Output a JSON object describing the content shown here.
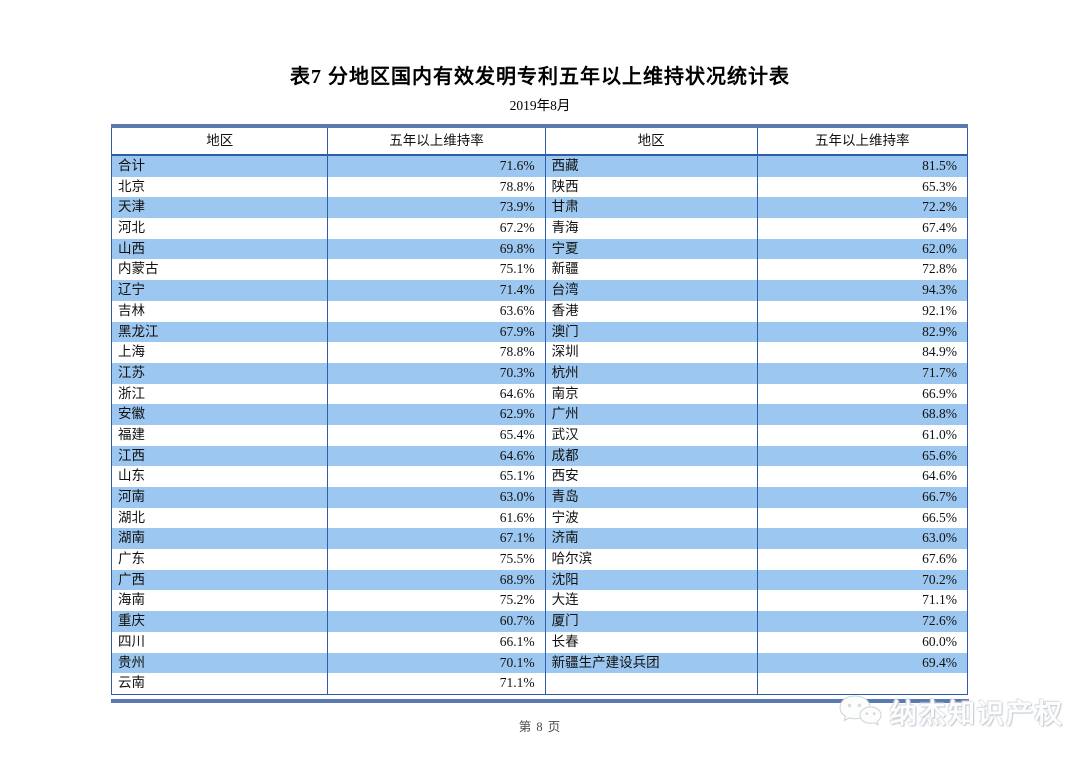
{
  "page": {
    "title": "表7  分地区国内有效发明专利五年以上维持状况统计表",
    "subtitle": "2019年8月",
    "footer_page": "第 8 页",
    "watermark_text": "纳杰知识产权",
    "watermark_icon": "wechat-icon"
  },
  "table": {
    "headers": [
      "地区",
      "五年以上维持率",
      "地区",
      "五年以上维持率"
    ],
    "rows": [
      [
        "合计",
        "71.6%",
        "西藏",
        "81.5%"
      ],
      [
        "北京",
        "78.8%",
        "陕西",
        "65.3%"
      ],
      [
        "天津",
        "73.9%",
        "甘肃",
        "72.2%"
      ],
      [
        "河北",
        "67.2%",
        "青海",
        "67.4%"
      ],
      [
        "山西",
        "69.8%",
        "宁夏",
        "62.0%"
      ],
      [
        "内蒙古",
        "75.1%",
        "新疆",
        "72.8%"
      ],
      [
        "辽宁",
        "71.4%",
        "台湾",
        "94.3%"
      ],
      [
        "吉林",
        "63.6%",
        "香港",
        "92.1%"
      ],
      [
        "黑龙江",
        "67.9%",
        "澳门",
        "82.9%"
      ],
      [
        "上海",
        "78.8%",
        "深圳",
        "84.9%"
      ],
      [
        "江苏",
        "70.3%",
        "杭州",
        "71.7%"
      ],
      [
        "浙江",
        "64.6%",
        "南京",
        "66.9%"
      ],
      [
        "安徽",
        "62.9%",
        "广州",
        "68.8%"
      ],
      [
        "福建",
        "65.4%",
        "武汉",
        "61.0%"
      ],
      [
        "江西",
        "64.6%",
        "成都",
        "65.6%"
      ],
      [
        "山东",
        "65.1%",
        "西安",
        "64.6%"
      ],
      [
        "河南",
        "63.0%",
        "青岛",
        "66.7%"
      ],
      [
        "湖北",
        "61.6%",
        "宁波",
        "66.5%"
      ],
      [
        "湖南",
        "67.1%",
        "济南",
        "63.0%"
      ],
      [
        "广东",
        "75.5%",
        "哈尔滨",
        "67.6%"
      ],
      [
        "广西",
        "68.9%",
        "沈阳",
        "70.2%"
      ],
      [
        "海南",
        "75.2%",
        "大连",
        "71.1%"
      ],
      [
        "重庆",
        "60.7%",
        "厦门",
        "72.6%"
      ],
      [
        "四川",
        "66.1%",
        "长春",
        "60.0%"
      ],
      [
        "贵州",
        "70.1%",
        "新疆生产建设兵团",
        "69.4%"
      ],
      [
        "云南",
        "71.1%",
        "",
        ""
      ]
    ]
  },
  "colors": {
    "row_highlight": "#9cc7f0",
    "border_thick": "#5a79b0",
    "border_thin": "#2f5ea6"
  }
}
